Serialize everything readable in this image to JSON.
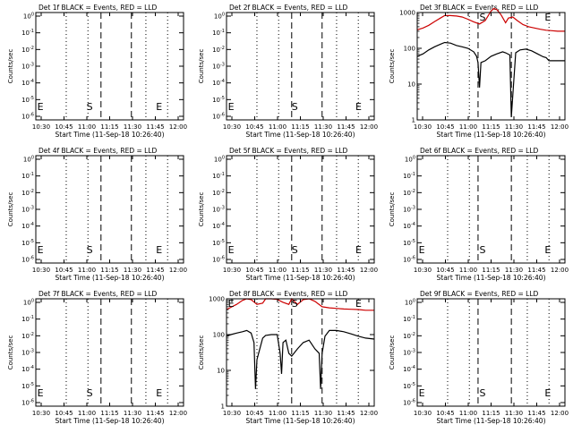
{
  "panel_titles": [
    "Det 1f BLACK = Events, RED = LLD",
    "Det 2f BLACK = Events, RED = LLD",
    "Det 3f BLACK = Events, RED = LLD",
    "Det 4f BLACK = Events, RED = LLD",
    "Det 5f BLACK = Events, RED = LLD",
    "Det 6f BLACK = Events, RED = LLD",
    "Det 7f BLACK = Events, RED = LLD",
    "Det 8f BLACK = Events, RED = LLD",
    "Det 9f BLACK = Events, RED = LLD"
  ],
  "xlabel": "Start Time (11-Sep-18 10:26:40)",
  "ylabel": "Counts/sec",
  "colors": {
    "events": "#000000",
    "lld": "#cc0000"
  },
  "chart_data": [
    {
      "type": "line",
      "title": "Det 1f BLACK = Events, RED = LLD",
      "xlabel": "Start Time (11-Sep-18 10:26:40)",
      "ylabel": "Counts/sec",
      "yscale": "log",
      "x_tick_labels": [
        "10:30",
        "10:45",
        "11:00",
        "11:15",
        "11:30",
        "11:45",
        "12:00"
      ],
      "y_tick_labels": [
        "10^0",
        "10^-1",
        "10^-2",
        "10^-3",
        "10^-4",
        "10^-5",
        "10^-6"
      ],
      "xlim_minutes": [
        629,
        731
      ],
      "dotted_lines_minutes": [
        650,
        665,
        705,
        720
      ],
      "dashed_lines_minutes": [
        674,
        695
      ],
      "markers": [
        {
          "label": "E",
          "x_minutes": 630
        },
        {
          "label": "S",
          "x_minutes": 664
        },
        {
          "label": "E",
          "x_minutes": 712
        }
      ],
      "series": []
    },
    {
      "type": "line",
      "title": "Det 2f BLACK = Events, RED = LLD",
      "xlabel": "Start Time (11-Sep-18 10:26:40)",
      "ylabel": "Counts/sec",
      "yscale": "log",
      "x_tick_labels": [
        "10:30",
        "10:45",
        "11:00",
        "11:15",
        "11:30",
        "11:45",
        "12:00"
      ],
      "y_tick_labels": [
        "10^0",
        "10^-1",
        "10^-2",
        "10^-3",
        "10^-4",
        "10^-5",
        "10^-6"
      ],
      "xlim_minutes": [
        629,
        731
      ],
      "dotted_lines_minutes": [
        650,
        665,
        705,
        720
      ],
      "dashed_lines_minutes": [
        674,
        695
      ],
      "markers": [
        {
          "label": "E",
          "x_minutes": 630
        },
        {
          "label": "S",
          "x_minutes": 674
        },
        {
          "label": "E",
          "x_minutes": 718
        }
      ],
      "series": []
    },
    {
      "type": "line",
      "title": "Det 3f BLACK = Events, RED = LLD",
      "xlabel": "Start Time (11-Sep-18 10:26:40)",
      "ylabel": "Counts/sec",
      "yscale": "log",
      "x_tick_labels": [
        "10:30",
        "10:45",
        "11:00",
        "11:15",
        "11:30",
        "11:45",
        "12:00"
      ],
      "y_tick_labels": [
        "1000",
        "100",
        "10",
        "1"
      ],
      "ylim": [
        1,
        1000
      ],
      "xlim_minutes": [
        629,
        731
      ],
      "dotted_lines_minutes": [
        650,
        665,
        705,
        720
      ],
      "dashed_lines_minutes": [
        671,
        694
      ],
      "markers": [
        {
          "label": "S",
          "x_minutes": 672
        },
        {
          "label": "E",
          "x_minutes": 717
        }
      ],
      "series": [
        {
          "color": "#cc0000",
          "x": [
            629,
            633,
            637,
            641,
            645,
            648,
            652,
            656,
            660,
            664,
            668,
            672,
            676,
            680,
            682,
            684,
            687,
            690,
            692,
            695,
            698,
            702,
            706,
            710,
            714,
            718,
            722,
            726,
            731
          ],
          "y": [
            330,
            370,
            440,
            560,
            700,
            820,
            820,
            800,
            750,
            650,
            550,
            480,
            600,
            1100,
            1300,
            1200,
            850,
            520,
            700,
            750,
            600,
            460,
            400,
            370,
            340,
            320,
            310,
            300,
            300
          ]
        },
        {
          "color": "#000000",
          "x": [
            629,
            633,
            637,
            641,
            645,
            648,
            652,
            656,
            660,
            664,
            668,
            670,
            671,
            672,
            673,
            676,
            680,
            684,
            688,
            690,
            693,
            694,
            695,
            697,
            700,
            704,
            708,
            712,
            716,
            718,
            720,
            724,
            728,
            731
          ],
          "y": [
            60,
            70,
            90,
            110,
            130,
            145,
            140,
            120,
            110,
            100,
            80,
            60,
            40,
            8,
            40,
            45,
            60,
            70,
            80,
            75,
            65,
            1.2,
            5,
            75,
            90,
            95,
            85,
            70,
            58,
            55,
            45,
            45,
            45,
            45
          ]
        }
      ]
    },
    {
      "type": "line",
      "title": "Det 4f BLACK = Events, RED = LLD",
      "xlabel": "Start Time (11-Sep-18 10:26:40)",
      "ylabel": "Counts/sec",
      "yscale": "log",
      "x_tick_labels": [
        "10:30",
        "10:45",
        "11:00",
        "11:15",
        "11:30",
        "11:45",
        "12:00"
      ],
      "y_tick_labels": [
        "10^0",
        "10^-1",
        "10^-2",
        "10^-3",
        "10^-4",
        "10^-5",
        "10^-6"
      ],
      "xlim_minutes": [
        629,
        731
      ],
      "dotted_lines_minutes": [
        650,
        665,
        705,
        720
      ],
      "dashed_lines_minutes": [
        674,
        695
      ],
      "markers": [
        {
          "label": "E",
          "x_minutes": 630
        },
        {
          "label": "S",
          "x_minutes": 664
        },
        {
          "label": "E",
          "x_minutes": 712
        }
      ],
      "series": []
    },
    {
      "type": "line",
      "title": "Det 5f BLACK = Events, RED = LLD",
      "xlabel": "Start Time (11-Sep-18 10:26:40)",
      "ylabel": "Counts/sec",
      "yscale": "log",
      "x_tick_labels": [
        "10:30",
        "10:45",
        "11:00",
        "11:15",
        "11:30",
        "11:45",
        "12:00"
      ],
      "y_tick_labels": [
        "10^0",
        "10^-1",
        "10^-2",
        "10^-3",
        "10^-4",
        "10^-5",
        "10^-6"
      ],
      "xlim_minutes": [
        629,
        731
      ],
      "dotted_lines_minutes": [
        650,
        665,
        705,
        720
      ],
      "dashed_lines_minutes": [
        674,
        695
      ],
      "markers": [
        {
          "label": "E",
          "x_minutes": 630
        },
        {
          "label": "S",
          "x_minutes": 674
        },
        {
          "label": "E",
          "x_minutes": 718
        }
      ],
      "series": []
    },
    {
      "type": "line",
      "title": "Det 6f BLACK = Events, RED = LLD",
      "xlabel": "Start Time (11-Sep-18 10:26:40)",
      "ylabel": "Counts/sec",
      "yscale": "log",
      "x_tick_labels": [
        "10:30",
        "10:45",
        "11:00",
        "11:15",
        "11:30",
        "11:45",
        "12:00"
      ],
      "y_tick_labels": [
        "10^0",
        "10^-1",
        "10^-2",
        "10^-3",
        "10^-4",
        "10^-5",
        "10^-6"
      ],
      "xlim_minutes": [
        629,
        731
      ],
      "dotted_lines_minutes": [
        650,
        665,
        705,
        720
      ],
      "dashed_lines_minutes": [
        671,
        694
      ],
      "markers": [
        {
          "label": "E",
          "x_minutes": 630
        },
        {
          "label": "S",
          "x_minutes": 672
        },
        {
          "label": "E",
          "x_minutes": 717
        }
      ],
      "series": []
    },
    {
      "type": "line",
      "title": "Det 7f BLACK = Events, RED = LLD",
      "xlabel": "Start Time (11-Sep-18 10:26:40)",
      "ylabel": "Counts/sec",
      "yscale": "log",
      "x_tick_labels": [
        "10:30",
        "10:45",
        "11:00",
        "11:15",
        "11:30",
        "11:45",
        "12:00"
      ],
      "y_tick_labels": [
        "10^0",
        "10^-1",
        "10^-2",
        "10^-3",
        "10^-4",
        "10^-5",
        "10^-6"
      ],
      "xlim_minutes": [
        629,
        731
      ],
      "dotted_lines_minutes": [
        650,
        665,
        705,
        720
      ],
      "dashed_lines_minutes": [
        674,
        695
      ],
      "markers": [
        {
          "label": "E",
          "x_minutes": 630
        },
        {
          "label": "S",
          "x_minutes": 664
        },
        {
          "label": "E",
          "x_minutes": 712
        }
      ],
      "series": []
    },
    {
      "type": "line",
      "title": "Det 8f BLACK = Events, RED = LLD",
      "xlabel": "Start Time (11-Sep-18 10:26:40)",
      "ylabel": "Counts/sec",
      "yscale": "log",
      "x_tick_labels": [
        "10:30",
        "10:45",
        "11:00",
        "11:15",
        "11:30",
        "11:45",
        "12:00"
      ],
      "y_tick_labels": [
        "1000",
        "100",
        "10",
        "1"
      ],
      "ylim": [
        1,
        1000
      ],
      "xlim_minutes": [
        629,
        731
      ],
      "dotted_lines_minutes": [
        650,
        665,
        705,
        720
      ],
      "dashed_lines_minutes": [
        674,
        695
      ],
      "markers": [
        {
          "label": "E",
          "x_minutes": 630
        },
        {
          "label": "S",
          "x_minutes": 674
        },
        {
          "label": "E",
          "x_minutes": 718
        }
      ],
      "series": [
        {
          "color": "#cc0000",
          "x": [
            629,
            632,
            636,
            640,
            643,
            646,
            650,
            654,
            656,
            660,
            664,
            668,
            672,
            674,
            678,
            682,
            686,
            690,
            695,
            700,
            705,
            710,
            715,
            720,
            725,
            731
          ],
          "y": [
            500,
            580,
            700,
            900,
            1000,
            950,
            700,
            760,
            1000,
            1000,
            960,
            800,
            700,
            1000,
            700,
            950,
            1000,
            850,
            600,
            560,
            540,
            520,
            510,
            500,
            480,
            480
          ]
        },
        {
          "color": "#000000",
          "x": [
            629,
            632,
            636,
            640,
            643,
            646,
            648,
            649,
            650,
            654,
            656,
            660,
            664,
            666,
            667,
            668,
            670,
            672,
            674,
            678,
            682,
            686,
            690,
            693,
            694,
            695,
            697,
            700,
            705,
            710,
            715,
            720,
            725,
            731
          ],
          "y": [
            90,
            100,
            110,
            120,
            130,
            110,
            60,
            3,
            20,
            80,
            95,
            100,
            100,
            30,
            8,
            60,
            70,
            30,
            25,
            40,
            60,
            70,
            40,
            30,
            3,
            30,
            90,
            130,
            130,
            120,
            105,
            90,
            80,
            75
          ]
        }
      ]
    },
    {
      "type": "line",
      "title": "Det 9f BLACK = Events, RED = LLD",
      "xlabel": "Start Time (11-Sep-18 10:26:40)",
      "ylabel": "Counts/sec",
      "yscale": "log",
      "x_tick_labels": [
        "10:30",
        "10:45",
        "11:00",
        "11:15",
        "11:30",
        "11:45",
        "12:00"
      ],
      "y_tick_labels": [
        "10^0",
        "10^-1",
        "10^-2",
        "10^-3",
        "10^-4",
        "10^-5",
        "10^-6"
      ],
      "xlim_minutes": [
        629,
        731
      ],
      "dotted_lines_minutes": [
        650,
        665,
        705,
        720
      ],
      "dashed_lines_minutes": [
        671,
        694
      ],
      "markers": [
        {
          "label": "E",
          "x_minutes": 630
        },
        {
          "label": "S",
          "x_minutes": 672
        },
        {
          "label": "E",
          "x_minutes": 717
        }
      ],
      "series": []
    }
  ]
}
